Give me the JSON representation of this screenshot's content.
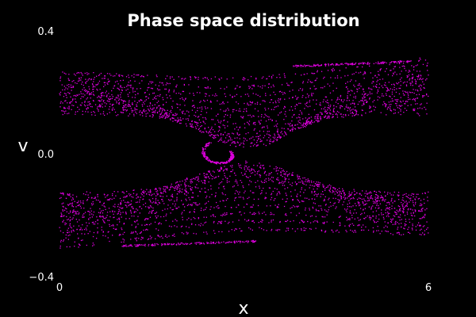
{
  "chart_data": {
    "type": "scatter",
    "title": "Phase space distribution",
    "xlabel": "x",
    "ylabel": "v",
    "xlim": [
      0,
      6
    ],
    "ylim": [
      -0.4,
      0.4
    ],
    "x_ticks": [
      0,
      6
    ],
    "x_tick_labels": [
      "0",
      "6"
    ],
    "y_ticks": [
      0.4,
      0.0,
      -0.4
    ],
    "y_tick_labels": [
      "0.4",
      "0.0",
      "−0.4"
    ],
    "grid": false,
    "legend": "none",
    "background_color": "#000000",
    "text_color": "#ffffff",
    "series": [
      {
        "color": "#e000e0",
        "structure": {
          "upper_band_v": [
            0.13,
            0.285
          ],
          "lower_band_v": [
            -0.285,
            -0.13
          ],
          "upper_trough": {
            "x": 3.05,
            "v": 0.02
          },
          "lower_crest": {
            "x": 3.05,
            "v": -0.03
          },
          "separatrix_top_right_v": 0.3,
          "separatrix_bottom_left_v": -0.3,
          "vortex_tail": {
            "x": 2.4,
            "v": -0.02
          }
        }
      }
    ]
  }
}
